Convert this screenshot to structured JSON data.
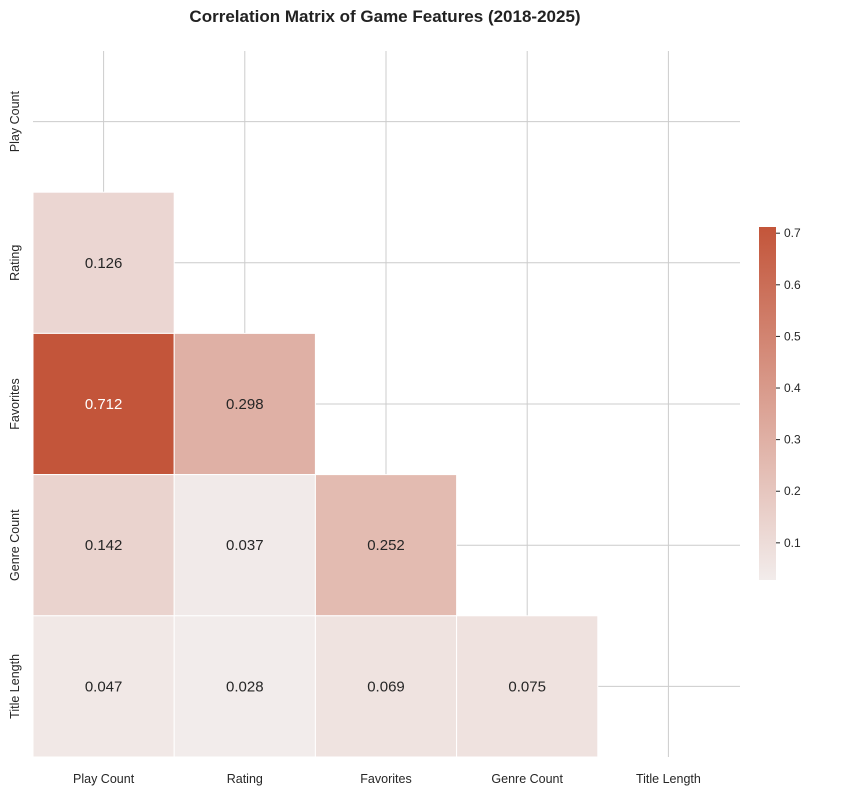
{
  "chart_data": {
    "type": "heatmap",
    "title": "Correlation Matrix of Game Features (2018-2025)",
    "x_labels": [
      "Play Count",
      "Rating",
      "Favorites",
      "Genre Count",
      "Title Length"
    ],
    "y_labels": [
      "Play Count",
      "Rating",
      "Favorites",
      "Genre Count",
      "Title Length"
    ],
    "mask": "upper-triangle-including-diagonal",
    "matrix": [
      [
        null,
        null,
        null,
        null,
        null
      ],
      [
        0.126,
        null,
        null,
        null,
        null
      ],
      [
        0.712,
        0.298,
        null,
        null,
        null
      ],
      [
        0.142,
        0.037,
        0.252,
        null,
        null
      ],
      [
        0.047,
        0.028,
        0.069,
        0.075,
        null
      ]
    ],
    "cell_labels": [
      [
        null,
        null,
        null,
        null,
        null
      ],
      [
        "0.126",
        null,
        null,
        null,
        null
      ],
      [
        "0.712",
        "0.298",
        null,
        null,
        null
      ],
      [
        "0.142",
        "0.037",
        "0.252",
        null,
        null
      ],
      [
        "0.047",
        "0.028",
        "0.069",
        "0.075",
        null
      ]
    ],
    "colorbar": {
      "range": [
        0.028,
        0.712
      ],
      "ticks": [
        0.1,
        0.2,
        0.3,
        0.4,
        0.5,
        0.6,
        0.7
      ],
      "tick_labels": [
        "0.1",
        "0.2",
        "0.3",
        "0.4",
        "0.5",
        "0.6",
        "0.7"
      ],
      "color_low": "#f2eceb",
      "color_high": "#c3553a"
    },
    "grid": true
  }
}
